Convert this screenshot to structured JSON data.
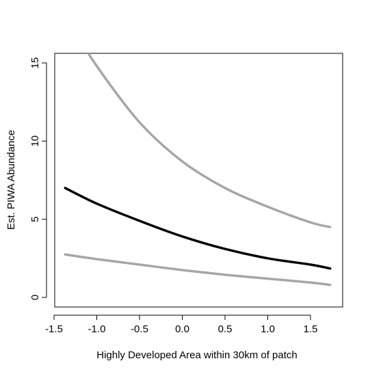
{
  "chart_data": {
    "type": "line",
    "title": "",
    "xlabel": "Highly Developed Area within 30km of patch",
    "ylabel": "Est. PIWA Abundance",
    "xlim": [
      -1.5,
      1.75
    ],
    "ylim": [
      0,
      15
    ],
    "xticks": [
      -1.5,
      -1.0,
      -0.5,
      0.0,
      0.5,
      1.0,
      1.5
    ],
    "xtick_labels": [
      "-1.5",
      "-1.0",
      "-0.5",
      "0.0",
      "0.5",
      "1.0",
      "1.5"
    ],
    "yticks": [
      0,
      5,
      10,
      15
    ],
    "ytick_labels": [
      "0",
      "5",
      "10",
      "15"
    ],
    "grid": false,
    "legend": "none",
    "x": [
      -1.37,
      -1.0,
      -0.5,
      0.0,
      0.5,
      1.0,
      1.5,
      1.73
    ],
    "series": [
      {
        "role": "estimate",
        "color": "#000000",
        "values": [
          7.0,
          6.0,
          4.9,
          3.9,
          3.1,
          2.5,
          2.1,
          1.85
        ]
      },
      {
        "role": "upper",
        "color": "#a6a6a6",
        "values": [
          18.0,
          14.8,
          11.2,
          8.7,
          7.0,
          5.8,
          4.8,
          4.5
        ]
      },
      {
        "role": "lower",
        "color": "#a6a6a6",
        "values": [
          2.75,
          2.45,
          2.1,
          1.75,
          1.45,
          1.2,
          0.95,
          0.8
        ]
      }
    ]
  }
}
